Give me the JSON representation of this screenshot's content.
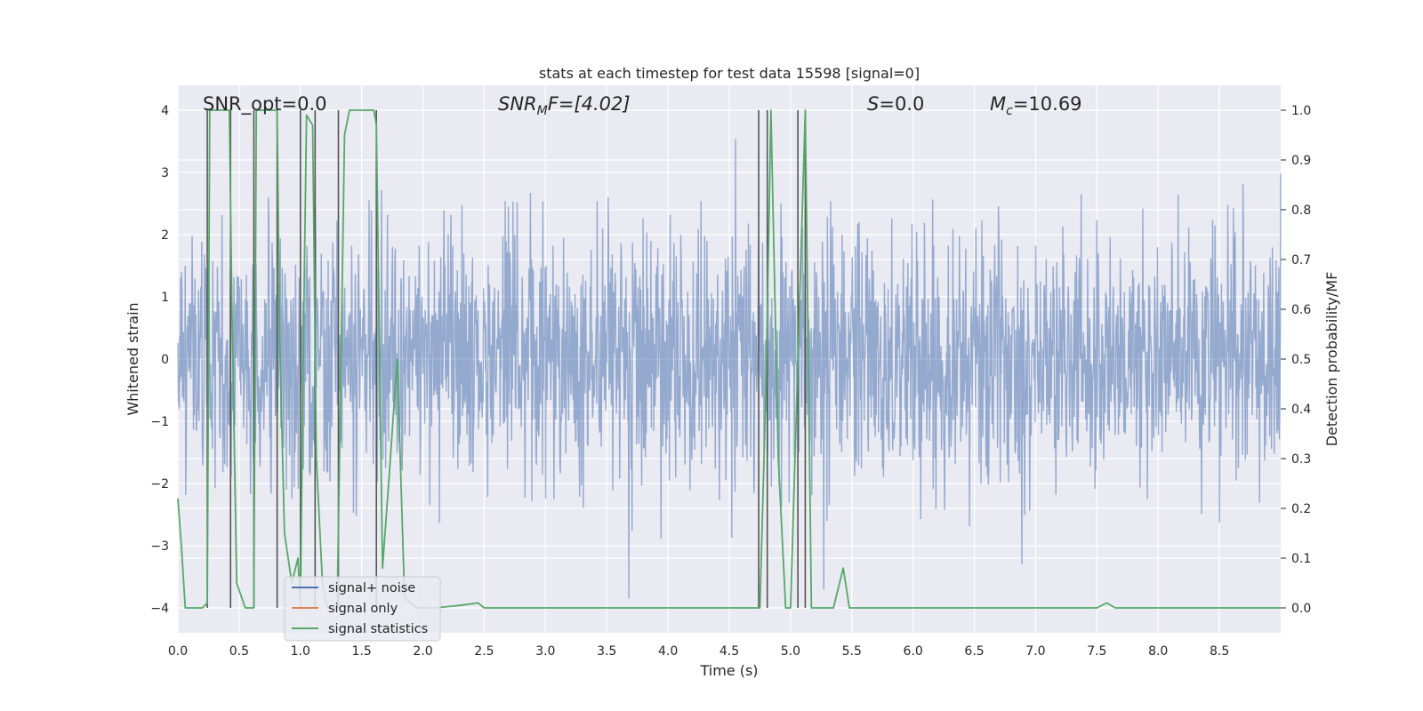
{
  "chart_data": {
    "type": "line",
    "title": "stats at each timestep for test data 15598 [signal=0]",
    "xlabel": "Time (s)",
    "ylabel": "Whitened strain",
    "ylabel_right": "Detection probability/MF",
    "xlim": [
      0,
      9.0
    ],
    "ylim": [
      -4.4,
      4.4
    ],
    "ylim_right": [
      -0.05,
      1.05
    ],
    "x_ticks": [
      "0.0",
      "0.5",
      "1.0",
      "1.5",
      "2.0",
      "2.5",
      "3.0",
      "3.5",
      "4.0",
      "4.5",
      "5.0",
      "5.5",
      "6.0",
      "6.5",
      "7.0",
      "7.5",
      "8.0",
      "8.5"
    ],
    "y_ticks": [
      "4",
      "3",
      "2",
      "1",
      "0",
      "−1",
      "−2",
      "−3",
      "−4"
    ],
    "y_right_ticks": [
      "1.0",
      "0.9",
      "0.8",
      "0.7",
      "0.6",
      "0.5",
      "0.4",
      "0.3",
      "0.2",
      "0.1",
      "0.0"
    ],
    "grid": true,
    "legend_placement": "lower-left",
    "annotations": {
      "snr_opt": "SNR_opt=0.0",
      "snr_mf_main": "SNR",
      "snr_mf_sub": "M",
      "snr_mf_rest": "F=[4.02]",
      "s_main": "S",
      "s_rest": "=0.0",
      "mc_main": "M",
      "mc_sub": "c",
      "mc_rest": "=10.69"
    },
    "detection_vlines": [
      0.24,
      0.43,
      0.62,
      0.81,
      1.0,
      1.12,
      1.31,
      1.62,
      4.74,
      4.81,
      5.06,
      5.12
    ],
    "series": [
      {
        "name": "signal+ noise",
        "color": "#4c72b0",
        "kind": "noise",
        "sigma": 1.0
      },
      {
        "name": "signal only",
        "color": "#dd8452",
        "kind": "flat",
        "x": [
          0,
          9.0
        ],
        "y": [
          0,
          0
        ]
      },
      {
        "name": "signal statistics",
        "color": "#55a868",
        "axis": "right",
        "x": [
          0.0,
          0.03,
          0.06,
          0.2,
          0.24,
          0.26,
          0.3,
          0.42,
          0.44,
          0.48,
          0.55,
          0.62,
          0.64,
          0.68,
          0.81,
          0.83,
          0.87,
          0.93,
          0.98,
          1.0,
          1.02,
          1.05,
          1.1,
          1.13,
          1.18,
          1.22,
          1.3,
          1.36,
          1.4,
          1.6,
          1.62,
          1.67,
          1.72,
          1.79,
          1.85,
          1.95,
          2.1,
          2.3,
          2.45,
          2.5,
          3.0,
          4.0,
          4.5,
          4.75,
          4.8,
          4.84,
          4.9,
          4.96,
          5.0,
          5.06,
          5.12,
          5.17,
          5.25,
          5.35,
          5.43,
          5.48,
          5.55,
          6.0,
          7.0,
          7.4,
          7.5,
          7.58,
          7.65,
          8.0,
          9.0
        ],
        "y": [
          0.22,
          0.12,
          0.0,
          0.0,
          0.01,
          1.0,
          1.0,
          1.0,
          0.62,
          0.05,
          0.0,
          0.0,
          1.0,
          1.0,
          1.0,
          0.55,
          0.15,
          0.05,
          0.1,
          0.0,
          0.45,
          0.99,
          0.97,
          0.3,
          0.05,
          0.0,
          0.0,
          0.95,
          1.0,
          1.0,
          0.97,
          0.08,
          0.25,
          0.5,
          0.02,
          0.0,
          0.0,
          0.005,
          0.01,
          0.0,
          0.0,
          0.0,
          0.0,
          0.0,
          0.45,
          1.0,
          0.3,
          0.0,
          0.0,
          0.5,
          1.0,
          0.0,
          0.0,
          0.0,
          0.08,
          0.0,
          0.0,
          0.0,
          0.0,
          0.0,
          0.0,
          0.01,
          0.0,
          0.0,
          0.0
        ]
      }
    ]
  }
}
